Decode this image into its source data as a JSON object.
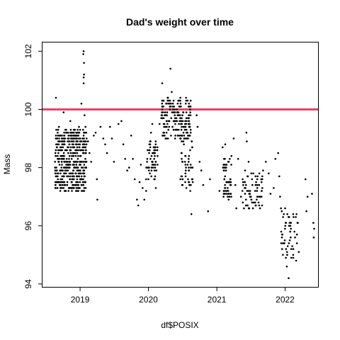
{
  "chart_data": {
    "type": "scatter",
    "title": "Dad's weight over time",
    "xlabel": "df$POSIX",
    "ylabel": "Mass",
    "xlim": [
      "2018-06-14",
      "2022-06-26"
    ],
    "ylim": [
      93.9,
      102.3
    ],
    "x_ticks": [
      "2019",
      "2020",
      "2021",
      "2022"
    ],
    "x_tick_dates": [
      "2019-01-01",
      "2020-01-01",
      "2021-01-01",
      "2022-01-01"
    ],
    "y_ticks": [
      "94",
      "96",
      "98",
      "100",
      "102"
    ],
    "grid": false,
    "reference_line": {
      "y": 100,
      "color": "#e0485f"
    },
    "point_color": "#000000",
    "series": [
      {
        "points": [
          [
            "2018-08-25",
            100.4
          ],
          [
            "2018-09-10",
            99.4
          ],
          [
            "2018-10-05",
            99.9
          ],
          [
            "2018-10-25",
            99.2
          ],
          [
            "2018-11-10",
            99.6
          ],
          [
            "2018-11-28",
            99.3
          ],
          [
            "2018-12-12",
            98.9
          ],
          [
            "2018-12-26",
            99.4
          ],
          [
            "2019-01-08",
            100.2
          ],
          [
            "2019-01-20",
            102.0
          ],
          [
            "2019-01-18",
            101.9
          ],
          [
            "2019-01-22",
            101.6
          ],
          [
            "2019-01-20",
            101.1
          ],
          [
            "2019-01-22",
            101.2
          ],
          [
            "2019-01-20",
            100.9
          ],
          [
            "2019-01-25",
            99.8
          ],
          [
            "2019-01-30",
            99.4
          ],
          [
            "2019-02-05",
            99.0
          ],
          [
            "2019-02-12",
            98.9
          ],
          [
            "2019-02-20",
            98.5
          ],
          [
            "2019-03-01",
            98.2
          ],
          [
            "2019-03-15",
            99.1
          ],
          [
            "2019-03-25",
            99.2
          ],
          [
            "2019-04-01",
            97.6
          ],
          [
            "2019-04-03",
            96.9
          ],
          [
            "2019-04-20",
            99.4
          ],
          [
            "2019-05-05",
            99.0
          ],
          [
            "2019-05-15",
            98.8
          ],
          [
            "2019-05-25",
            98.5
          ],
          [
            "2019-06-10",
            99.4
          ],
          [
            "2019-06-20",
            99.0
          ],
          [
            "2019-07-01",
            98.2
          ],
          [
            "2019-07-25",
            99.5
          ],
          [
            "2019-08-10",
            99.6
          ],
          [
            "2019-08-20",
            98.8
          ],
          [
            "2019-08-30",
            98.3
          ],
          [
            "2019-09-10",
            97.9
          ],
          [
            "2019-09-20",
            98.0
          ],
          [
            "2019-10-01",
            99.1
          ],
          [
            "2019-10-10",
            98.3
          ],
          [
            "2019-10-20",
            97.6
          ],
          [
            "2019-11-01",
            96.9
          ],
          [
            "2019-11-08",
            96.7
          ],
          [
            "2019-11-15",
            97.5
          ],
          [
            "2019-11-22",
            98.1
          ],
          [
            "2019-12-01",
            97.3
          ],
          [
            "2019-12-10",
            96.9
          ],
          [
            "2019-12-20",
            97.2
          ],
          [
            "2020-01-01",
            97.6
          ],
          [
            "2020-01-08",
            98.6
          ],
          [
            "2020-01-15",
            99.2
          ],
          [
            "2020-01-22",
            99.5
          ],
          [
            "2020-02-01",
            98.3
          ],
          [
            "2020-02-10",
            97.3
          ],
          [
            "2020-02-18",
            98.6
          ],
          [
            "2020-03-01",
            99.5
          ],
          [
            "2020-03-15",
            100.9
          ],
          [
            "2020-03-25",
            99.2
          ],
          [
            "2020-04-05",
            99.8
          ],
          [
            "2020-04-15",
            100.4
          ],
          [
            "2020-04-25",
            100.2
          ],
          [
            "2020-04-28",
            101.4
          ],
          [
            "2020-05-05",
            100.6
          ],
          [
            "2020-05-12",
            100.0
          ],
          [
            "2020-05-20",
            99.6
          ],
          [
            "2020-06-01",
            99.3
          ],
          [
            "2020-06-10",
            99.9
          ],
          [
            "2020-06-20",
            100.3
          ],
          [
            "2020-07-01",
            99.8
          ],
          [
            "2020-07-10",
            99.0
          ],
          [
            "2020-07-20",
            100.4
          ],
          [
            "2020-07-28",
            99.2
          ],
          [
            "2020-08-05",
            98.4
          ],
          [
            "2020-08-12",
            97.2
          ],
          [
            "2020-08-18",
            96.4
          ],
          [
            "2020-08-25",
            97.5
          ],
          [
            "2020-09-15",
            99.8
          ],
          [
            "2020-09-20",
            99.4
          ],
          [
            "2020-10-01",
            98.2
          ],
          [
            "2020-10-10",
            97.9
          ],
          [
            "2020-10-20",
            97.4
          ],
          [
            "2020-11-15",
            96.5
          ],
          [
            "2020-11-25",
            97.6
          ],
          [
            "2021-01-15",
            97.2
          ],
          [
            "2021-02-01",
            98.7
          ],
          [
            "2021-02-10",
            97.6
          ],
          [
            "2021-02-15",
            98.8
          ],
          [
            "2021-02-25",
            97.2
          ],
          [
            "2021-03-05",
            96.9
          ],
          [
            "2021-03-20",
            98.4
          ],
          [
            "2021-04-01",
            99.0
          ],
          [
            "2021-04-10",
            97.4
          ],
          [
            "2021-04-15",
            96.6
          ],
          [
            "2021-04-25",
            98.3
          ],
          [
            "2021-05-10",
            97.0
          ],
          [
            "2021-05-20",
            96.8
          ],
          [
            "2021-06-01",
            97.9
          ],
          [
            "2021-06-08",
            99.2
          ],
          [
            "2021-06-10",
            98.9
          ],
          [
            "2021-06-20",
            98.2
          ],
          [
            "2021-06-28",
            97.2
          ],
          [
            "2021-07-05",
            96.9
          ],
          [
            "2021-07-15",
            97.8
          ],
          [
            "2021-07-25",
            96.8
          ],
          [
            "2021-08-05",
            97.4
          ],
          [
            "2021-08-20",
            96.6
          ],
          [
            "2021-09-05",
            97.9
          ],
          [
            "2021-09-20",
            98.2
          ],
          [
            "2021-10-05",
            97.8
          ],
          [
            "2021-10-15",
            97.1
          ],
          [
            "2021-11-01",
            97.3
          ],
          [
            "2021-11-10",
            98.3
          ],
          [
            "2021-11-25",
            98.5
          ],
          [
            "2021-12-01",
            97.7
          ],
          [
            "2021-12-05",
            97.0
          ],
          [
            "2021-12-10",
            96.6
          ],
          [
            "2021-12-15",
            95.6
          ],
          [
            "2021-12-20",
            95.0
          ],
          [
            "2021-12-25",
            96.4
          ],
          [
            "2021-12-28",
            95.4
          ],
          [
            "2022-01-01",
            96.6
          ],
          [
            "2022-01-05",
            94.9
          ],
          [
            "2022-01-10",
            94.6
          ],
          [
            "2022-01-15",
            95.3
          ],
          [
            "2022-01-20",
            94.2
          ],
          [
            "2022-01-25",
            96.1
          ],
          [
            "2022-02-01",
            95.9
          ],
          [
            "2022-02-08",
            95.3
          ],
          [
            "2022-02-15",
            96.3
          ],
          [
            "2022-02-20",
            95.8
          ],
          [
            "2022-03-01",
            94.8
          ],
          [
            "2022-03-05",
            95.4
          ],
          [
            "2022-03-10",
            96.1
          ],
          [
            "2022-03-15",
            95.1
          ],
          [
            "2022-04-20",
            97.6
          ],
          [
            "2022-04-25",
            96.5
          ],
          [
            "2022-05-01",
            97.0
          ],
          [
            "2022-05-25",
            97.1
          ],
          [
            "2022-06-01",
            96.1
          ],
          [
            "2022-06-03",
            95.6
          ],
          [
            "2022-06-05",
            95.9
          ]
        ],
        "dense_clusters": [
          {
            "from": "2018-08-20",
            "to": "2019-02-05",
            "n": 460,
            "y_low": 97.2,
            "y_high": 99.3
          },
          {
            "from": "2020-03-10",
            "to": "2020-08-20",
            "n": 170,
            "y_low": 99.0,
            "y_high": 100.4
          },
          {
            "from": "2020-06-20",
            "to": "2020-08-25",
            "n": 55,
            "y_low": 97.3,
            "y_high": 99.2
          },
          {
            "from": "2019-12-20",
            "to": "2020-02-20",
            "n": 60,
            "y_low": 97.6,
            "y_high": 99.0
          },
          {
            "from": "2021-02-01",
            "to": "2021-03-20",
            "n": 55,
            "y_low": 97.0,
            "y_high": 98.3
          },
          {
            "from": "2021-05-15",
            "to": "2021-09-05",
            "n": 60,
            "y_low": 96.6,
            "y_high": 97.8
          },
          {
            "from": "2021-12-10",
            "to": "2022-03-10",
            "n": 40,
            "y_low": 94.9,
            "y_high": 96.5
          }
        ]
      }
    ]
  }
}
